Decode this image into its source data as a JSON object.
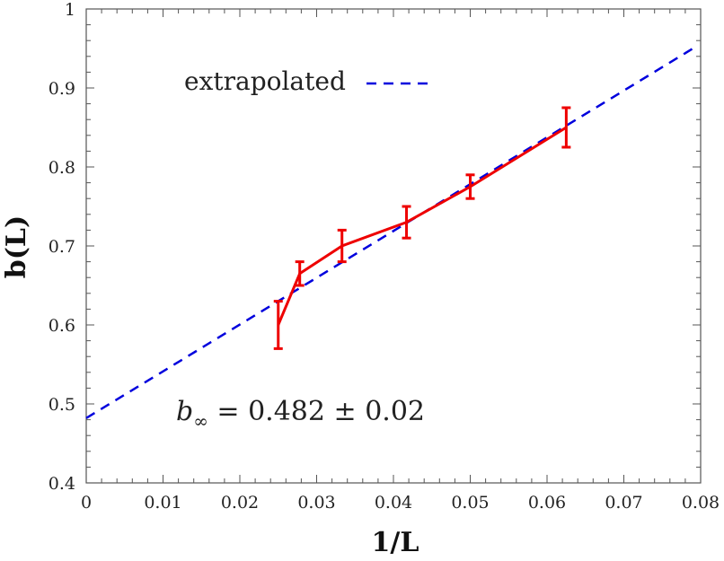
{
  "chart_data": {
    "type": "line",
    "title": "",
    "xlabel": "1/L",
    "ylabel": "b(L)",
    "xlim": [
      0,
      0.08
    ],
    "ylim": [
      0.4,
      1.0
    ],
    "x_ticks": [
      "0",
      "0.01",
      "0.02",
      "0.03",
      "0.04",
      "0.05",
      "0.06",
      "0.07",
      "0.08"
    ],
    "y_ticks": [
      "0.4",
      "0.5",
      "0.6",
      "0.7",
      "0.8",
      "0.9",
      "1"
    ],
    "grid": false,
    "legend_position": "top-left",
    "series": [
      {
        "kind": "data",
        "color": "#ee0000",
        "style": "solid-with-errorbars",
        "x": [
          0.025,
          0.0278,
          0.0333,
          0.0417,
          0.05,
          0.0625
        ],
        "y": [
          0.6,
          0.665,
          0.7,
          0.73,
          0.775,
          0.85
        ],
        "err": [
          0.03,
          0.015,
          0.02,
          0.02,
          0.015,
          0.025
        ]
      },
      {
        "name": "extrapolated",
        "kind": "fit",
        "color": "#0000dd",
        "style": "dashed",
        "x": [
          0,
          0.079
        ],
        "y": [
          0.482,
          0.95
        ]
      }
    ],
    "annotation": {
      "base": "b",
      "subscript": "∞",
      "rest": " = 0.482 ± 0.02"
    }
  }
}
